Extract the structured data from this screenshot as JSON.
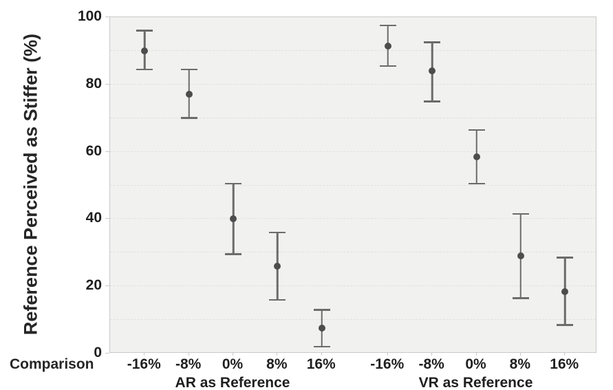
{
  "chart_data": {
    "type": "scatter",
    "subtype": "point-estimates-with-error-bars",
    "title": "",
    "ylabel": "Reference Perceived as Stiffer (%)",
    "xlabel": "Comparison",
    "ylim": [
      0,
      100
    ],
    "y_ticks": [
      0,
      20,
      40,
      60,
      80,
      100
    ],
    "y_gridline_step": 10,
    "grid_style": "dashed",
    "legend_position": "none",
    "categories": [
      "-16%",
      "-8%",
      "0%",
      "8%",
      "16%"
    ],
    "series": [
      {
        "name": "AR as Reference",
        "means": [
          90,
          77,
          40,
          26,
          7.5
        ],
        "ci_low": [
          84.5,
          70,
          29.5,
          16,
          2
        ],
        "ci_high": [
          96,
          84.5,
          50.5,
          36,
          13
        ]
      },
      {
        "name": "VR as Reference",
        "means": [
          91.5,
          84,
          58.5,
          29,
          18.5
        ],
        "ci_low": [
          85.5,
          75,
          50.5,
          16.5,
          8.5
        ],
        "ci_high": [
          97.5,
          92.5,
          66.5,
          41.5,
          28.5
        ]
      }
    ],
    "colors": {
      "point": "#4d4d4d",
      "error_bar": "#6b6b6b",
      "plot_background": "#f1f1f0",
      "plot_border": "#c9c9c9",
      "gridline": "#e2e0de",
      "text": "#1f1f1f"
    }
  }
}
